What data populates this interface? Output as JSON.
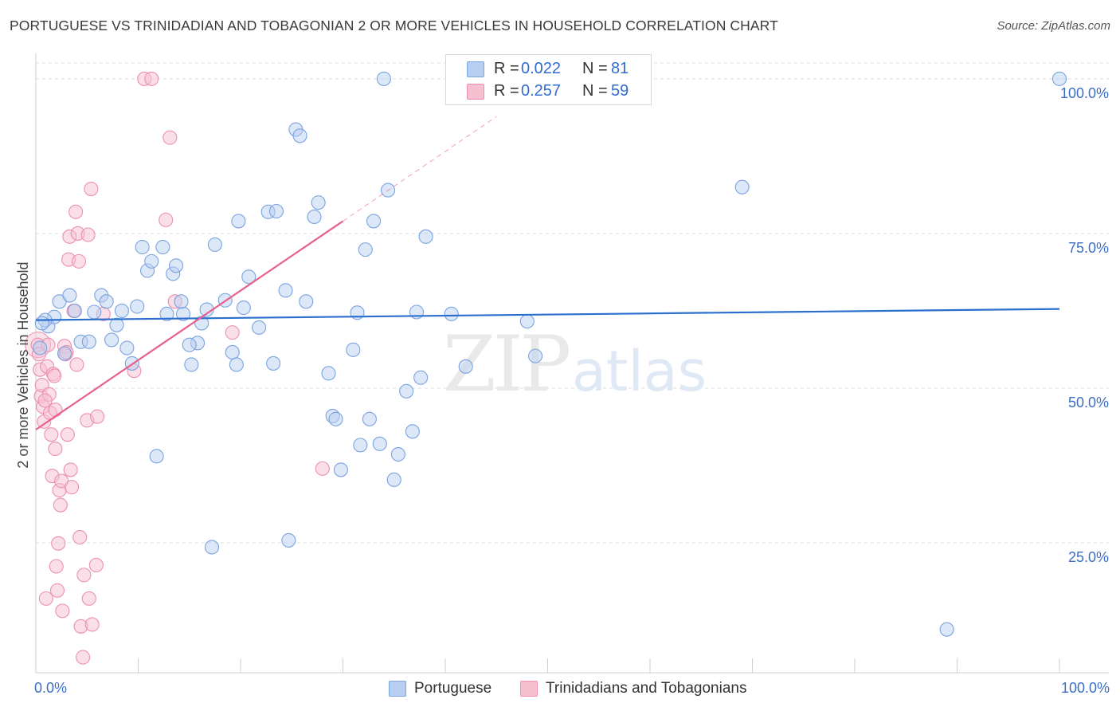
{
  "title": "PORTUGUESE VS TRINIDADIAN AND TOBAGONIAN 2 OR MORE VEHICLES IN HOUSEHOLD CORRELATION CHART",
  "source": "Source: ZipAtlas.com",
  "watermark": {
    "zip": "ZIP",
    "atlas": "atlas"
  },
  "legend": {
    "rows": [
      {
        "r_label": "R =",
        "r_value": "0.022",
        "n_label": "N =",
        "n_value": "81"
      },
      {
        "r_label": "R =",
        "r_value": "0.257",
        "n_label": "N =",
        "n_value": "59"
      }
    ]
  },
  "bottom_legend": {
    "series1": "Portuguese",
    "series2": "Trinidadians and Tobagonians"
  },
  "colors": {
    "blue_fill": "#b9cff2",
    "blue_stroke": "#7aa3e0",
    "blue_line": "#2a6fce",
    "pink_fill": "#f7c0d1",
    "pink_stroke": "#ec90b0",
    "pink_line": "#e8608e",
    "tick_text": "#3b6fc4",
    "grid": "#dcdcdc"
  },
  "chart_data": {
    "type": "scatter",
    "title": "PORTUGUESE VS TRINIDADIAN AND TOBAGONIAN 2 OR MORE VEHICLES IN HOUSEHOLD CORRELATION CHART",
    "xlabel": "",
    "ylabel": "2 or more Vehicles in Household",
    "xlim": [
      0,
      100
    ],
    "ylim": [
      4,
      102.5
    ],
    "x_tick_labels": [
      "0.0%",
      "100.0%"
    ],
    "y_ticks": [
      25,
      50,
      75,
      100
    ],
    "y_tick_labels": [
      "25.0%",
      "50.0%",
      "75.0%",
      "100.0%"
    ],
    "series": [
      {
        "name": "Portuguese",
        "R": 0.022,
        "N": 81,
        "trend": {
          "x": [
            0,
            100
          ],
          "y": [
            61.0,
            62.8
          ]
        },
        "points": [
          [
            0.4,
            56.5
          ],
          [
            1.2,
            60.0
          ],
          [
            1.8,
            61.5
          ],
          [
            2.3,
            64.0
          ],
          [
            2.8,
            55.6
          ],
          [
            3.3,
            65.0
          ],
          [
            3.8,
            62.5
          ],
          [
            4.4,
            57.5
          ],
          [
            5.2,
            57.5
          ],
          [
            5.7,
            62.3
          ],
          [
            6.4,
            65.0
          ],
          [
            6.9,
            64.0
          ],
          [
            7.4,
            57.8
          ],
          [
            7.9,
            60.2
          ],
          [
            8.4,
            62.5
          ],
          [
            8.9,
            56.5
          ],
          [
            9.4,
            54.0
          ],
          [
            9.9,
            63.2
          ],
          [
            10.4,
            72.8
          ],
          [
            10.9,
            69.0
          ],
          [
            11.3,
            70.5
          ],
          [
            11.8,
            39.0
          ],
          [
            12.4,
            72.8
          ],
          [
            12.8,
            62.0
          ],
          [
            13.4,
            68.5
          ],
          [
            13.7,
            69.8
          ],
          [
            14.4,
            62.0
          ],
          [
            14.2,
            64.0
          ],
          [
            15.2,
            53.8
          ],
          [
            15.8,
            57.3
          ],
          [
            16.2,
            60.5
          ],
          [
            16.7,
            62.7
          ],
          [
            17.5,
            73.2
          ],
          [
            17.2,
            24.3
          ],
          [
            18.5,
            64.2
          ],
          [
            19.2,
            55.8
          ],
          [
            19.6,
            53.8
          ],
          [
            19.8,
            77.0
          ],
          [
            20.3,
            63.0
          ],
          [
            20.8,
            68.0
          ],
          [
            21.8,
            59.8
          ],
          [
            22.7,
            78.5
          ],
          [
            23.2,
            54.0
          ],
          [
            23.5,
            78.6
          ],
          [
            24.4,
            65.8
          ],
          [
            25.4,
            91.8
          ],
          [
            25.8,
            90.8
          ],
          [
            26.4,
            64.0
          ],
          [
            27.2,
            77.7
          ],
          [
            27.6,
            80.0
          ],
          [
            28.6,
            52.4
          ],
          [
            29.0,
            45.5
          ],
          [
            29.3,
            45.0
          ],
          [
            29.8,
            36.8
          ],
          [
            31.0,
            56.2
          ],
          [
            31.4,
            62.2
          ],
          [
            31.7,
            40.8
          ],
          [
            32.2,
            72.4
          ],
          [
            32.6,
            45.0
          ],
          [
            33.0,
            77.0
          ],
          [
            33.6,
            41.0
          ],
          [
            34.4,
            82.0
          ],
          [
            35.0,
            35.2
          ],
          [
            35.4,
            39.3
          ],
          [
            36.2,
            49.5
          ],
          [
            36.8,
            43.0
          ],
          [
            37.2,
            62.3
          ],
          [
            37.6,
            51.7
          ],
          [
            38.1,
            74.5
          ],
          [
            34.0,
            100.0
          ],
          [
            24.7,
            25.4
          ],
          [
            40.6,
            62.0
          ],
          [
            42.0,
            53.5
          ],
          [
            48.0,
            60.8
          ],
          [
            48.8,
            55.2
          ],
          [
            69.0,
            82.5
          ],
          [
            89.0,
            11.0
          ],
          [
            100.0,
            100.0
          ],
          [
            0.9,
            61.0
          ],
          [
            0.6,
            60.5
          ],
          [
            15.0,
            57.0
          ]
        ]
      },
      {
        "name": "Trinidadians and Tobagonians",
        "R": 0.257,
        "N": 59,
        "trend": {
          "x": [
            0,
            30
          ],
          "y": [
            43.3,
            77.0
          ]
        },
        "trend_dashed": {
          "x": [
            30,
            45
          ],
          "y": [
            77.0,
            93.9
          ]
        },
        "points": [
          [
            0.2,
            57.0
          ],
          [
            0.4,
            53.0
          ],
          [
            0.5,
            48.7
          ],
          [
            0.6,
            50.5
          ],
          [
            0.7,
            47.0
          ],
          [
            0.8,
            44.6
          ],
          [
            0.3,
            55.5
          ],
          [
            1.0,
            16.0
          ],
          [
            1.1,
            53.5
          ],
          [
            1.2,
            57.0
          ],
          [
            1.3,
            49.0
          ],
          [
            1.4,
            46.0
          ],
          [
            1.5,
            42.5
          ],
          [
            1.6,
            35.8
          ],
          [
            1.7,
            52.3
          ],
          [
            1.8,
            52.0
          ],
          [
            1.9,
            40.2
          ],
          [
            2.0,
            21.2
          ],
          [
            2.1,
            17.3
          ],
          [
            2.2,
            24.9
          ],
          [
            2.3,
            33.5
          ],
          [
            2.4,
            31.1
          ],
          [
            2.5,
            35.0
          ],
          [
            2.6,
            14.0
          ],
          [
            2.8,
            56.8
          ],
          [
            2.9,
            55.5
          ],
          [
            3.1,
            42.5
          ],
          [
            3.2,
            70.8
          ],
          [
            3.3,
            74.5
          ],
          [
            3.4,
            36.8
          ],
          [
            3.5,
            34.0
          ],
          [
            3.7,
            62.5
          ],
          [
            3.9,
            78.5
          ],
          [
            4.0,
            53.8
          ],
          [
            4.1,
            75.0
          ],
          [
            4.2,
            70.5
          ],
          [
            4.3,
            25.9
          ],
          [
            4.4,
            11.5
          ],
          [
            4.6,
            6.5
          ],
          [
            4.7,
            19.8
          ],
          [
            5.0,
            44.8
          ],
          [
            5.1,
            74.8
          ],
          [
            5.2,
            16.0
          ],
          [
            5.4,
            82.2
          ],
          [
            5.5,
            11.8
          ],
          [
            5.9,
            21.4
          ],
          [
            6.0,
            45.4
          ],
          [
            6.6,
            62.0
          ],
          [
            9.6,
            52.8
          ],
          [
            10.6,
            100.0
          ],
          [
            11.3,
            100.0
          ],
          [
            13.1,
            90.5
          ],
          [
            12.7,
            77.2
          ],
          [
            13.6,
            64.0
          ],
          [
            19.2,
            59.0
          ],
          [
            28.0,
            37.0
          ],
          [
            1.9,
            46.5
          ],
          [
            0.9,
            48.0
          ],
          [
            3.0,
            55.8
          ]
        ]
      }
    ]
  }
}
